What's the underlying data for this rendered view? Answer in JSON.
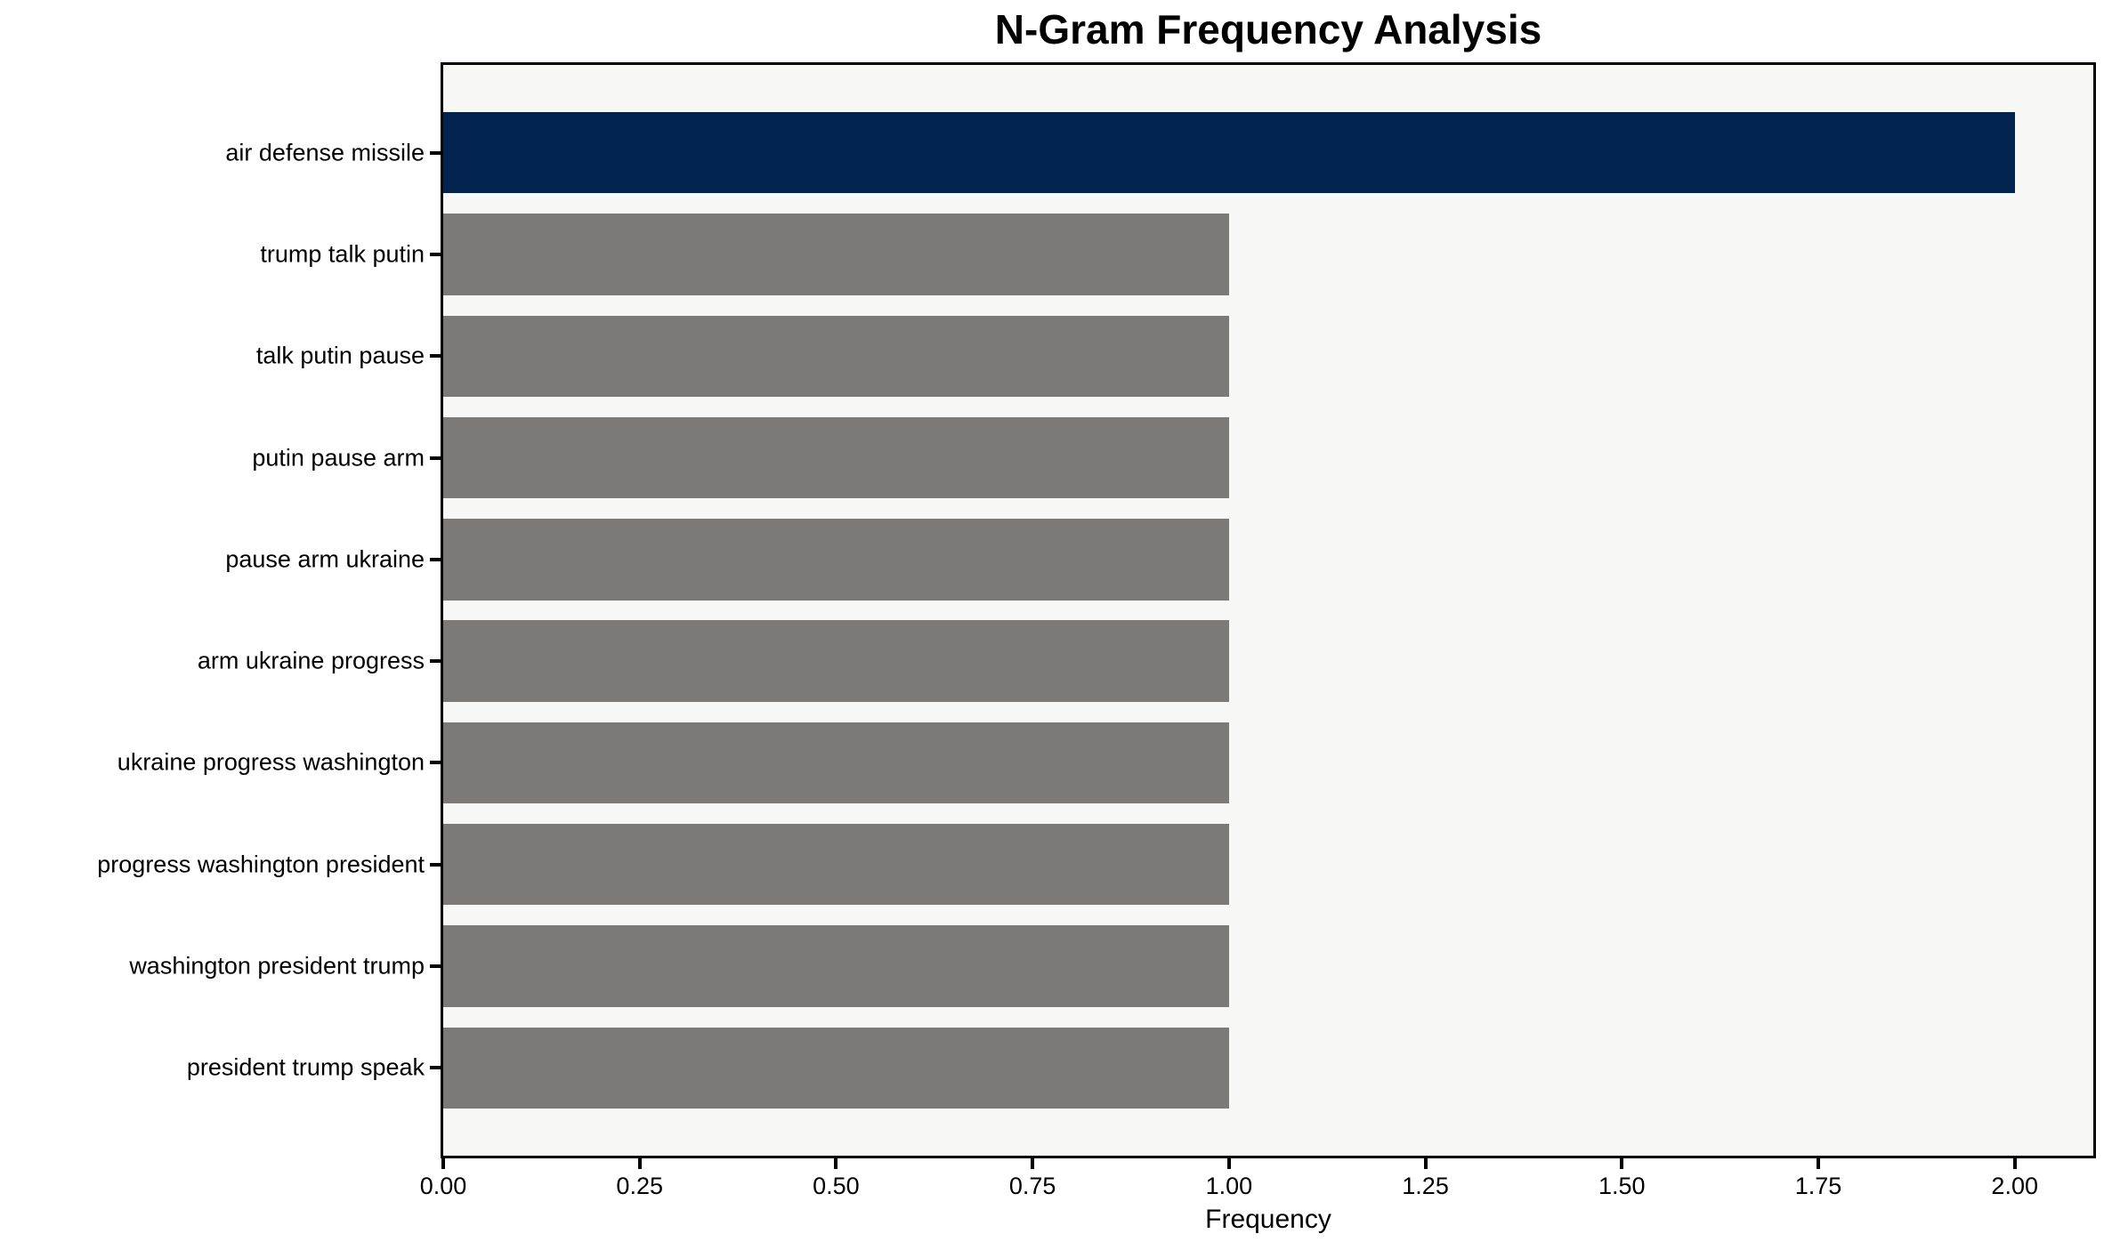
{
  "chart_data": {
    "type": "bar",
    "orientation": "horizontal",
    "title": "N-Gram Frequency Analysis",
    "xlabel": "Frequency",
    "ylabel": "",
    "categories": [
      "air defense missile",
      "trump talk putin",
      "talk putin pause",
      "putin pause arm",
      "pause arm ukraine",
      "arm ukraine progress",
      "ukraine progress washington",
      "progress washington president",
      "washington president trump",
      "president trump speak"
    ],
    "values": [
      2,
      1,
      1,
      1,
      1,
      1,
      1,
      1,
      1,
      1
    ],
    "bar_colors": [
      "#02234e",
      "#7b7a76",
      "#7b7a76",
      "#7b7a76",
      "#7b7a76",
      "#7b7a76",
      "#7b7a76",
      "#7b7a76",
      "#7b7a76",
      "#7b7a76"
    ],
    "xlim": [
      0,
      2.1
    ],
    "xticks": [
      0,
      0.25,
      0.5,
      0.75,
      1,
      1.25,
      1.5,
      1.75,
      2
    ],
    "xtick_labels": [
      "0.00",
      "0.25",
      "0.50",
      "0.75",
      "1.00",
      "1.25",
      "1.50",
      "1.75",
      "2.00"
    ],
    "grid": false,
    "legend": null,
    "colors": {
      "highlight_bar": "#02234e",
      "default_bar": "#7b7a76",
      "plot_background": "#f7f7f6",
      "figure_background": "#ffffff",
      "spine": "#000000",
      "text": "#000000"
    }
  }
}
